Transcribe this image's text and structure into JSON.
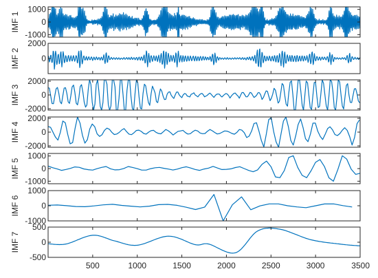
{
  "colors": {
    "line": "#0072BD",
    "axis": "#262626"
  },
  "chart_data": [
    {
      "type": "line",
      "ylabel": "IMF 1",
      "xlim": [
        0,
        3500
      ],
      "ylim": [
        -1200,
        1200
      ],
      "yticks": [
        -1000,
        0,
        1000
      ],
      "ytick_labels": [
        "-1000",
        "0",
        "1000"
      ],
      "series": [
        {
          "kind": "oscillation",
          "base_period": 14,
          "amplitude": 650,
          "bursts": [
            [
              60,
              30,
              1.6
            ],
            [
              145,
              20,
              1.3
            ],
            [
              355,
              25,
              1.7
            ],
            [
              400,
              20,
              1.4
            ],
            [
              640,
              25,
              1.4
            ],
            [
              1100,
              30,
              1.5
            ],
            [
              1300,
              40,
              2.0
            ],
            [
              1460,
              8,
              1.8
            ],
            [
              1850,
              30,
              1.9
            ],
            [
              2320,
              60,
              2.1
            ],
            [
              2400,
              20,
              1.9
            ],
            [
              2620,
              40,
              1.6
            ],
            [
              2950,
              35,
              1.6
            ],
            [
              3170,
              25,
              1.7
            ],
            [
              3350,
              30,
              1.5
            ]
          ],
          "x": [
            0,
            3500
          ]
        }
      ]
    },
    {
      "type": "line",
      "ylabel": "IMF 2",
      "xlim": [
        0,
        3500
      ],
      "ylim": [
        -2000,
        2000
      ],
      "yticks": [
        -2000,
        0,
        2000
      ],
      "ytick_labels": [
        "",
        "0",
        "2000"
      ],
      "series": [
        {
          "kind": "oscillation",
          "base_period": 28,
          "amplitude": 450,
          "bursts": [
            [
              75,
              30,
              1.9
            ],
            [
              150,
              25,
              1.5
            ],
            [
              360,
              30,
              1.8
            ],
            [
              650,
              30,
              1.6
            ],
            [
              1110,
              35,
              1.6
            ],
            [
              1310,
              40,
              1.8
            ],
            [
              1450,
              20,
              1.5
            ],
            [
              1860,
              30,
              1.5
            ],
            [
              2370,
              40,
              2.6
            ],
            [
              2630,
              40,
              1.4
            ],
            [
              2960,
              35,
              1.3
            ],
            [
              3170,
              30,
              1.4
            ],
            [
              3380,
              30,
              1.3
            ]
          ],
          "x": [
            0,
            3500
          ]
        }
      ]
    },
    {
      "type": "line",
      "ylabel": "IMF 3",
      "xlim": [
        0,
        3500
      ],
      "ylim": [
        -2200,
        2200
      ],
      "yticks": [
        -2000,
        0,
        2000
      ],
      "ytick_labels": [
        "-2000",
        "0",
        "2000"
      ],
      "series": [
        {
          "kind": "oscillation",
          "base_period": 90,
          "amplitude": 1350,
          "bursts": [
            [
              600,
              260,
              1.2
            ],
            [
              900,
              300,
              1.3
            ],
            [
              2800,
              200,
              1.4
            ],
            [
              3200,
              150,
              1.2
            ]
          ],
          "x": [
            0,
            3500
          ]
        }
      ]
    },
    {
      "type": "line",
      "ylabel": "IMF 4",
      "xlim": [
        0,
        3500
      ],
      "ylim": [
        -2200,
        2200
      ],
      "yticks": [
        -2000,
        0,
        2000
      ],
      "ytick_labels": [
        "-2000",
        "0",
        "2000"
      ],
      "series": [
        {
          "kind": "oscillation",
          "base_period": 165,
          "amplitude": 1200,
          "bursts": [
            [
              300,
              200,
              1.2
            ],
            [
              2450,
              200,
              1.2
            ],
            [
              2800,
              300,
              1.3
            ],
            [
              3450,
              80,
              1.4
            ]
          ],
          "x": [
            0,
            3500
          ]
        }
      ]
    },
    {
      "type": "line",
      "ylabel": "IMF 5",
      "xlim": [
        0,
        3500
      ],
      "ylim": [
        -1200,
        1200
      ],
      "yticks": [
        -1000,
        0,
        1000
      ],
      "ytick_labels": [
        "-1000",
        "0",
        "1000"
      ],
      "series": [
        {
          "kind": "oscillation",
          "base_period": 300,
          "amplitude": 550,
          "bursts": [
            [
              2700,
              300,
              1.6
            ],
            [
              3250,
              200,
              1.5
            ]
          ],
          "x": [
            0,
            3500
          ]
        }
      ]
    },
    {
      "type": "line",
      "ylabel": "IMF 6",
      "xlim": [
        0,
        3500
      ],
      "ylim": [
        -1000,
        1000
      ],
      "yticks": [
        -1000,
        0,
        1000
      ],
      "ytick_labels": [
        "-1000",
        "0",
        "1000"
      ],
      "series": [
        {
          "kind": "oscillation",
          "base_period": 620,
          "amplitude": 350,
          "bursts": [
            [
              1900,
              200,
              2.0
            ],
            [
              2050,
              150,
              -2.2
            ]
          ],
          "x": [
            0,
            3500
          ]
        }
      ]
    },
    {
      "type": "line",
      "ylabel": "IMF 7",
      "xlim": [
        0,
        3500
      ],
      "ylim": [
        -500,
        500
      ],
      "yticks": [
        -500,
        0,
        500
      ],
      "ytick_labels": [
        "-500",
        "0",
        "500"
      ],
      "series": [
        {
          "kind": "curve",
          "points": [
            [
              0,
              -50
            ],
            [
              200,
              -60
            ],
            [
              500,
              230
            ],
            [
              750,
              40
            ],
            [
              1000,
              -100
            ],
            [
              1350,
              200
            ],
            [
              1650,
              -80
            ],
            [
              1800,
              -60
            ],
            [
              2100,
              -350
            ],
            [
              2350,
              370
            ],
            [
              2600,
              430
            ],
            [
              2950,
              80
            ],
            [
              3300,
              -70
            ],
            [
              3500,
              -120
            ]
          ]
        }
      ],
      "xticks": [
        500,
        1000,
        1500,
        2000,
        2500,
        3000,
        3500
      ],
      "xtick_labels": [
        "500",
        "1000",
        "1500",
        "2000",
        "2500",
        "3000",
        "3500"
      ]
    }
  ]
}
